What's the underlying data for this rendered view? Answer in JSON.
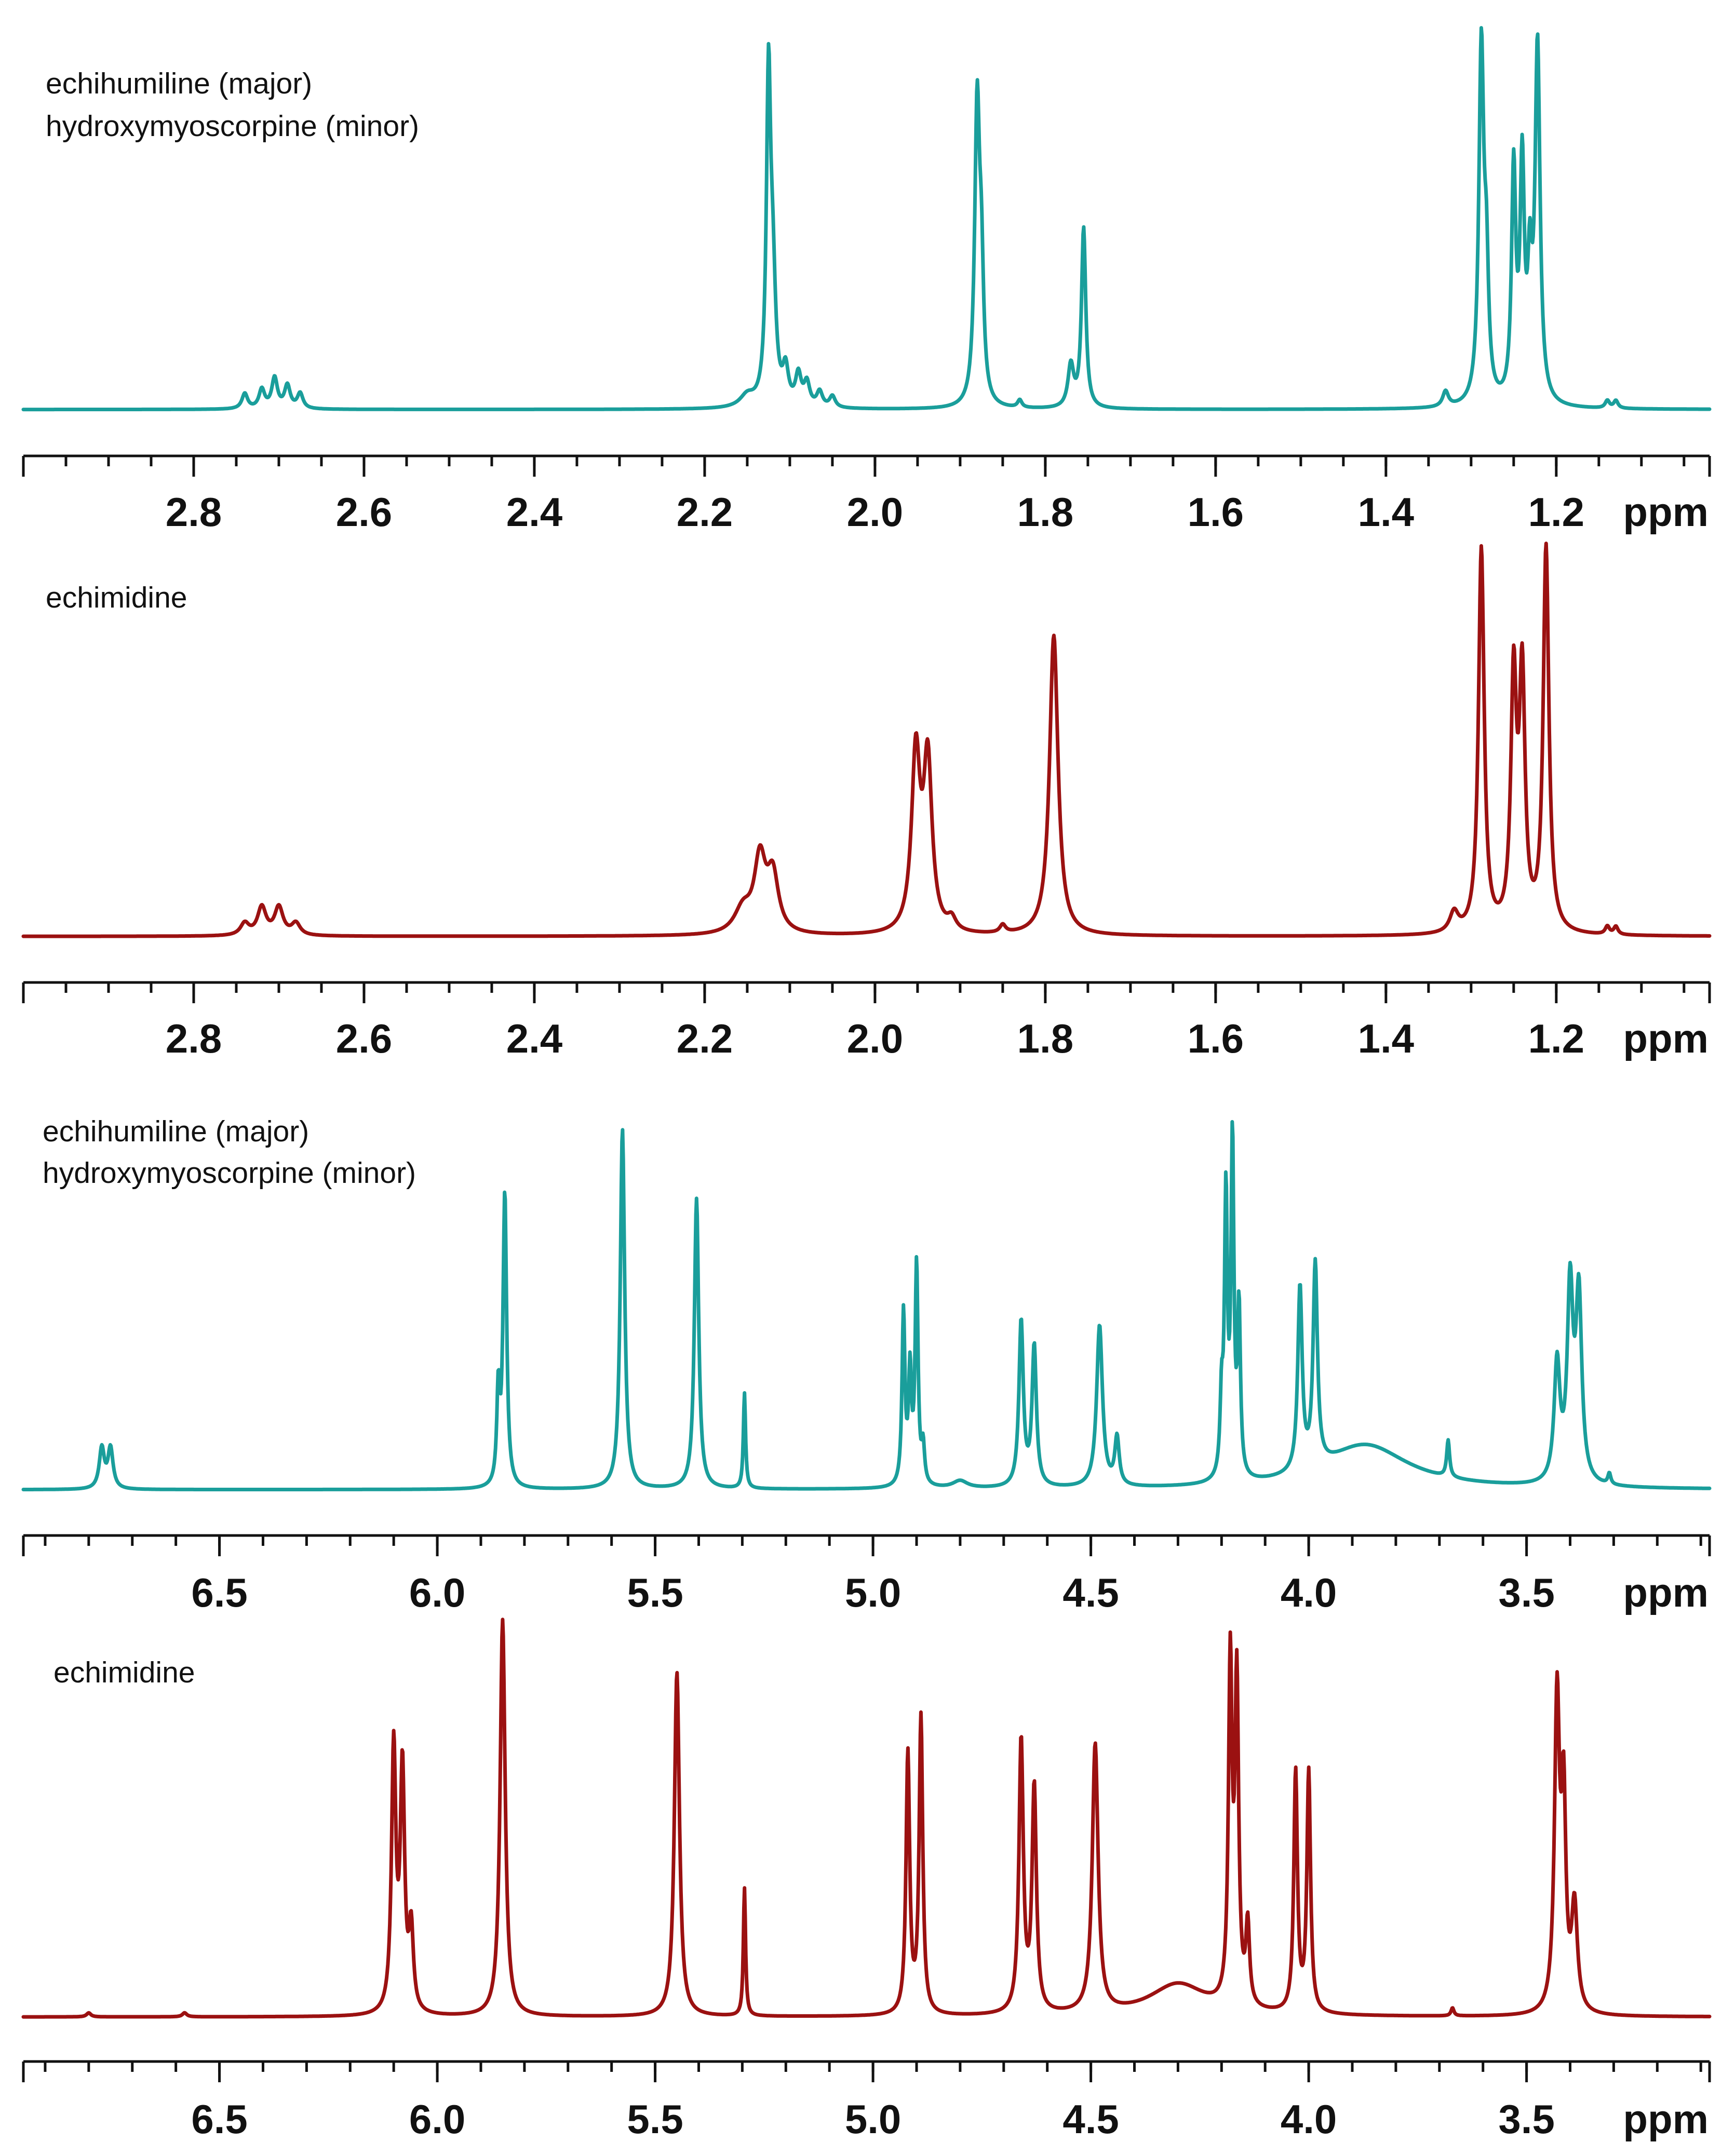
{
  "colors": {
    "teal": "#1a9e9b",
    "darkred": "#9b1111",
    "axis": "#111111"
  },
  "chart_data": [
    {
      "type": "line",
      "title": "",
      "labels": [
        "echihumiline (major)",
        "hydroxymyoscorpine (minor)"
      ],
      "color": "teal",
      "xlabel": "ppm",
      "xlim": [
        3.0,
        1.02
      ],
      "ylim": [
        0,
        1
      ],
      "tick_labels": [
        "2.8",
        "2.6",
        "2.4",
        "2.2",
        "2.0",
        "1.8",
        "1.6",
        "1.4",
        "1.2"
      ],
      "baseline": 0.01,
      "peaks": [
        {
          "x": 2.74,
          "h": 0.04,
          "w": 0.004
        },
        {
          "x": 2.72,
          "h": 0.05,
          "w": 0.004
        },
        {
          "x": 2.705,
          "h": 0.08,
          "w": 0.004
        },
        {
          "x": 2.69,
          "h": 0.06,
          "w": 0.004
        },
        {
          "x": 2.675,
          "h": 0.04,
          "w": 0.004
        },
        {
          "x": 2.15,
          "h": 0.03,
          "w": 0.01
        },
        {
          "x": 2.125,
          "h": 0.83,
          "w": 0.003
        },
        {
          "x": 2.12,
          "h": 0.3,
          "w": 0.004
        },
        {
          "x": 2.105,
          "h": 0.09,
          "w": 0.004
        },
        {
          "x": 2.09,
          "h": 0.08,
          "w": 0.004
        },
        {
          "x": 2.08,
          "h": 0.06,
          "w": 0.004
        },
        {
          "x": 2.065,
          "h": 0.04,
          "w": 0.004
        },
        {
          "x": 2.05,
          "h": 0.03,
          "w": 0.004
        },
        {
          "x": 1.88,
          "h": 0.78,
          "w": 0.0035
        },
        {
          "x": 1.875,
          "h": 0.3,
          "w": 0.003
        },
        {
          "x": 1.83,
          "h": 0.02,
          "w": 0.003
        },
        {
          "x": 1.77,
          "h": 0.11,
          "w": 0.004
        },
        {
          "x": 1.755,
          "h": 0.47,
          "w": 0.003
        },
        {
          "x": 1.33,
          "h": 0.04,
          "w": 0.004
        },
        {
          "x": 1.288,
          "h": 0.93,
          "w": 0.0035
        },
        {
          "x": 1.282,
          "h": 0.3,
          "w": 0.003
        },
        {
          "x": 1.25,
          "h": 0.6,
          "w": 0.003
        },
        {
          "x": 1.24,
          "h": 0.6,
          "w": 0.003
        },
        {
          "x": 1.231,
          "h": 0.3,
          "w": 0.003
        },
        {
          "x": 1.222,
          "h": 0.93,
          "w": 0.0035
        },
        {
          "x": 1.14,
          "h": 0.02,
          "w": 0.003
        },
        {
          "x": 1.13,
          "h": 0.02,
          "w": 0.003
        }
      ]
    },
    {
      "type": "line",
      "title": "",
      "labels": [
        "echimidine"
      ],
      "color": "darkred",
      "xlabel": "ppm",
      "xlim": [
        3.0,
        1.02
      ],
      "ylim": [
        0,
        1
      ],
      "tick_labels": [
        "2.8",
        "2.6",
        "2.4",
        "2.2",
        "2.0",
        "1.8",
        "1.6",
        "1.4",
        "1.2"
      ],
      "baseline": 0.01,
      "peaks": [
        {
          "x": 2.74,
          "h": 0.03,
          "w": 0.006
        },
        {
          "x": 2.72,
          "h": 0.07,
          "w": 0.006
        },
        {
          "x": 2.7,
          "h": 0.07,
          "w": 0.006
        },
        {
          "x": 2.68,
          "h": 0.03,
          "w": 0.006
        },
        {
          "x": 2.155,
          "h": 0.06,
          "w": 0.012
        },
        {
          "x": 2.135,
          "h": 0.18,
          "w": 0.008
        },
        {
          "x": 2.12,
          "h": 0.14,
          "w": 0.008
        },
        {
          "x": 1.952,
          "h": 0.44,
          "w": 0.006
        },
        {
          "x": 1.938,
          "h": 0.42,
          "w": 0.006
        },
        {
          "x": 1.91,
          "h": 0.03,
          "w": 0.006
        },
        {
          "x": 1.85,
          "h": 0.02,
          "w": 0.004
        },
        {
          "x": 1.79,
          "h": 0.75,
          "w": 0.006
        },
        {
          "x": 1.32,
          "h": 0.05,
          "w": 0.006
        },
        {
          "x": 1.288,
          "h": 0.96,
          "w": 0.004
        },
        {
          "x": 1.25,
          "h": 0.62,
          "w": 0.004
        },
        {
          "x": 1.24,
          "h": 0.62,
          "w": 0.004
        },
        {
          "x": 1.212,
          "h": 0.96,
          "w": 0.004
        },
        {
          "x": 1.14,
          "h": 0.02,
          "w": 0.003
        },
        {
          "x": 1.13,
          "h": 0.02,
          "w": 0.003
        }
      ]
    },
    {
      "type": "line",
      "title": "",
      "labels": [
        "echihumiline (major)",
        "hydroxymyoscorpine (minor)"
      ],
      "color": "teal",
      "xlabel": "ppm",
      "xlim": [
        6.95,
        3.08
      ],
      "ylim": [
        0,
        1
      ],
      "tick_labels": [
        "6.5",
        "6.0",
        "5.5",
        "5.0",
        "4.5",
        "4.0",
        "3.5"
      ],
      "baseline": 0.01,
      "peaks": [
        {
          "x": 6.77,
          "h": 0.11,
          "w": 0.007
        },
        {
          "x": 6.75,
          "h": 0.11,
          "w": 0.007
        },
        {
          "x": 5.86,
          "h": 0.25,
          "w": 0.004
        },
        {
          "x": 5.845,
          "h": 0.8,
          "w": 0.005
        },
        {
          "x": 5.575,
          "h": 0.98,
          "w": 0.006
        },
        {
          "x": 5.405,
          "h": 0.79,
          "w": 0.006
        },
        {
          "x": 5.295,
          "h": 0.26,
          "w": 0.003
        },
        {
          "x": 4.93,
          "h": 0.47,
          "w": 0.004
        },
        {
          "x": 4.915,
          "h": 0.3,
          "w": 0.004
        },
        {
          "x": 4.9,
          "h": 0.6,
          "w": 0.004
        },
        {
          "x": 4.885,
          "h": 0.1,
          "w": 0.004
        },
        {
          "x": 4.8,
          "h": 0.02,
          "w": 0.02
        },
        {
          "x": 4.66,
          "h": 0.45,
          "w": 0.006
        },
        {
          "x": 4.63,
          "h": 0.38,
          "w": 0.006
        },
        {
          "x": 4.48,
          "h": 0.44,
          "w": 0.008
        },
        {
          "x": 4.44,
          "h": 0.13,
          "w": 0.006
        },
        {
          "x": 4.2,
          "h": 0.2,
          "w": 0.004
        },
        {
          "x": 4.19,
          "h": 0.76,
          "w": 0.004
        },
        {
          "x": 4.175,
          "h": 0.91,
          "w": 0.004
        },
        {
          "x": 4.16,
          "h": 0.45,
          "w": 0.004
        },
        {
          "x": 4.02,
          "h": 0.5,
          "w": 0.006
        },
        {
          "x": 3.985,
          "h": 0.55,
          "w": 0.006
        },
        {
          "x": 3.87,
          "h": 0.12,
          "w": 0.12
        },
        {
          "x": 3.68,
          "h": 0.1,
          "w": 0.004
        },
        {
          "x": 3.43,
          "h": 0.32,
          "w": 0.008
        },
        {
          "x": 3.4,
          "h": 0.52,
          "w": 0.008
        },
        {
          "x": 3.38,
          "h": 0.5,
          "w": 0.008
        },
        {
          "x": 3.31,
          "h": 0.03,
          "w": 0.004
        }
      ]
    },
    {
      "type": "line",
      "title": "",
      "labels": [
        "echimidine"
      ],
      "color": "darkred",
      "xlabel": "ppm",
      "xlim": [
        6.95,
        3.08
      ],
      "ylim": [
        0,
        1
      ],
      "tick_labels": [
        "6.5",
        "6.0",
        "5.5",
        "5.0",
        "4.5",
        "4.0",
        "3.5"
      ],
      "baseline": 0.01,
      "peaks": [
        {
          "x": 6.8,
          "h": 0.01,
          "w": 0.006
        },
        {
          "x": 6.58,
          "h": 0.01,
          "w": 0.006
        },
        {
          "x": 6.1,
          "h": 0.66,
          "w": 0.006
        },
        {
          "x": 6.08,
          "h": 0.6,
          "w": 0.006
        },
        {
          "x": 6.06,
          "h": 0.2,
          "w": 0.006
        },
        {
          "x": 5.85,
          "h": 0.99,
          "w": 0.007
        },
        {
          "x": 5.45,
          "h": 0.86,
          "w": 0.007
        },
        {
          "x": 5.295,
          "h": 0.32,
          "w": 0.003
        },
        {
          "x": 4.92,
          "h": 0.65,
          "w": 0.005
        },
        {
          "x": 4.89,
          "h": 0.74,
          "w": 0.005
        },
        {
          "x": 4.66,
          "h": 0.68,
          "w": 0.006
        },
        {
          "x": 4.63,
          "h": 0.56,
          "w": 0.006
        },
        {
          "x": 4.49,
          "h": 0.67,
          "w": 0.008
        },
        {
          "x": 4.3,
          "h": 0.08,
          "w": 0.08
        },
        {
          "x": 4.18,
          "h": 0.85,
          "w": 0.005
        },
        {
          "x": 4.165,
          "h": 0.8,
          "w": 0.005
        },
        {
          "x": 4.14,
          "h": 0.2,
          "w": 0.005
        },
        {
          "x": 4.03,
          "h": 0.6,
          "w": 0.005
        },
        {
          "x": 4.0,
          "h": 0.6,
          "w": 0.005
        },
        {
          "x": 3.67,
          "h": 0.02,
          "w": 0.004
        },
        {
          "x": 3.43,
          "h": 0.78,
          "w": 0.007
        },
        {
          "x": 3.415,
          "h": 0.5,
          "w": 0.006
        },
        {
          "x": 3.39,
          "h": 0.26,
          "w": 0.008
        }
      ]
    }
  ]
}
